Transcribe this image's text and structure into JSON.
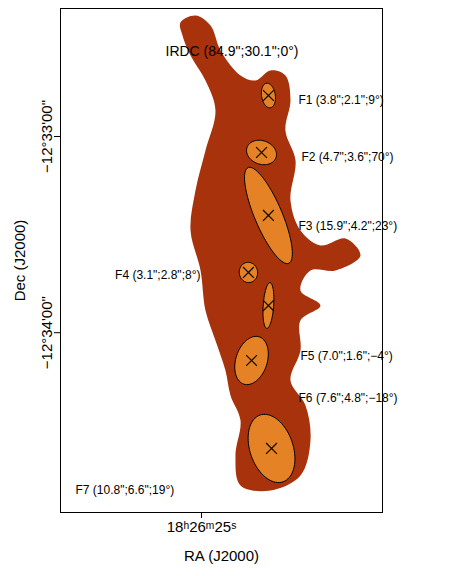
{
  "chart_data": {
    "type": "image",
    "title": "IRDC (84.9\";30.1\";0°)",
    "xlabel": "RA (J2000)",
    "ylabel": "Dec (J2000)",
    "xlim": [
      276.61644,
      276.58841
    ],
    "ylim": [
      -12.58194,
      -12.53913
    ],
    "xticks": [
      {
        "value": 276.604167,
        "label": "18ʰ26ᵐ25ˢ"
      }
    ],
    "yticks": [
      {
        "value": -12.55,
        "label": "−12°33'00\""
      },
      {
        "value": -12.566667,
        "label": "−12°34'00\""
      }
    ],
    "color": "#a8320c",
    "marker": "times",
    "emission_outline": {
      "x": [
        276.606,
        276.60469,
        276.60338,
        276.60251,
        276.60077,
        276.59947,
        276.59816,
        276.59686,
        276.59642,
        276.59686,
        276.59598,
        276.59642,
        276.59555,
        276.59381,
        276.59163,
        276.59033,
        276.5925,
        276.59468,
        276.59555,
        276.59381,
        276.59555,
        276.59555,
        276.59642,
        276.59511,
        276.59468,
        276.59555,
        276.59816,
        276.60077,
        276.60121,
        276.60077,
        276.60164,
        276.60208,
        276.60295,
        276.60382,
        276.60425,
        276.60512,
        276.60469,
        276.60382,
        276.60295,
        276.60382,
        276.60512,
        276.60582
      ],
      "y": [
        -12.54032,
        -12.53972,
        -12.54057,
        -12.54269,
        -12.54482,
        -12.54524,
        -12.54439,
        -12.54482,
        -12.54694,
        -12.54949,
        -12.55204,
        -12.55544,
        -12.55799,
        -12.55926,
        -12.55867,
        -12.56011,
        -12.56138,
        -12.56138,
        -12.56308,
        -12.56436,
        -12.56563,
        -12.56818,
        -12.57073,
        -12.57285,
        -12.57583,
        -12.5788,
        -12.58007,
        -12.57965,
        -12.5771,
        -12.57413,
        -12.572,
        -12.56988,
        -12.56733,
        -12.56478,
        -12.56138,
        -12.55799,
        -12.55459,
        -12.55119,
        -12.54779,
        -12.54524,
        -12.54312,
        -12.54142
      ]
    },
    "clumps": [
      {
        "label": "F1 (3.8\";2.1\";9°)",
        "x": 276.59834,
        "y": -12.54652,
        "major": 3.8,
        "minor": 2.1,
        "pa": 9
      },
      {
        "label": "F2 (4.7\";3.6\";70°)",
        "x": 276.59894,
        "y": -12.55136,
        "major": 4.7,
        "minor": 3.6,
        "pa": 70
      },
      {
        "label": "F3 (15.9\";4.2\";23°)",
        "x": 276.59834,
        "y": -12.55671,
        "major": 15.9,
        "minor": 4.2,
        "pa": 23
      },
      {
        "label": "F4 (3.1\";2.8\";8°)",
        "x": 276.60008,
        "y": -12.56155,
        "major": 3.1,
        "minor": 2.8,
        "pa": 8
      },
      {
        "label": "F5 (7.0\";1.6\";−4°)",
        "x": 276.59834,
        "y": -12.56436,
        "major": 7.0,
        "minor": 1.6,
        "pa": -4
      },
      {
        "label": "F6 (7.6\";4.8\";−18°)",
        "x": 276.59981,
        "y": -12.56903,
        "major": 7.6,
        "minor": 4.8,
        "pa": -18
      },
      {
        "label": "F7 (10.8\";6.6\";19°)",
        "x": 276.59807,
        "y": -12.5765,
        "major": 10.8,
        "minor": 6.6,
        "pa": 19
      }
    ]
  }
}
